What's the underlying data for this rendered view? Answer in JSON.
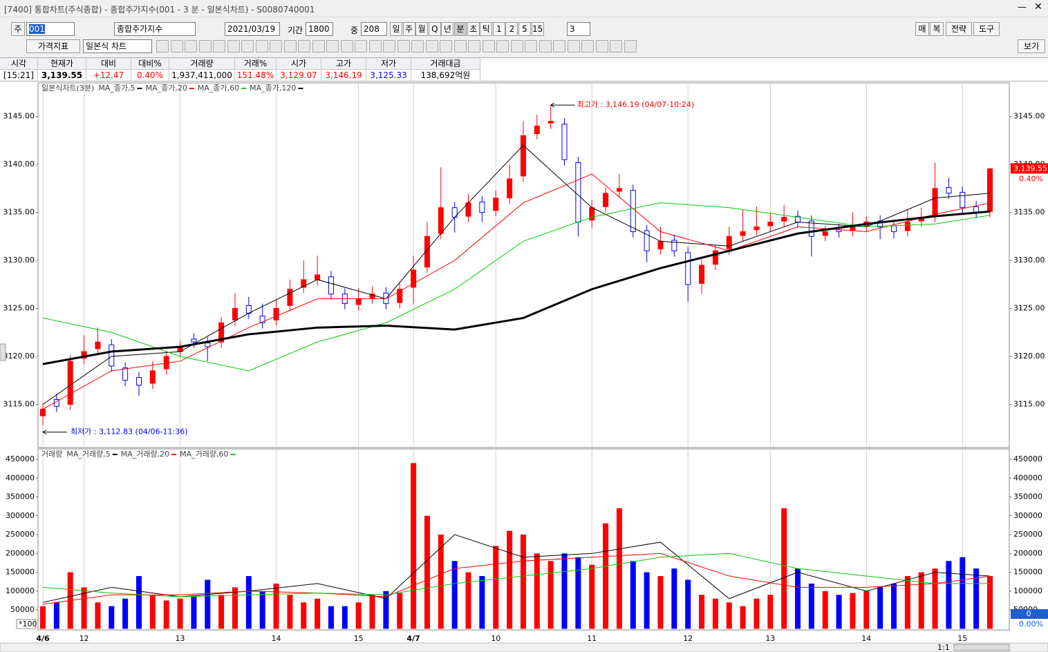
{
  "window": {
    "title": "[7400] 통합차트(주식종합) - 종합주가지수(001 - 3 분 - 일본식차트) - S0080740001"
  },
  "toolbar": {
    "market": "주",
    "code": "001",
    "name": "종합주가지수",
    "date": "2021/03/19",
    "period_label": "기간",
    "period": "1800",
    "count_label": "중",
    "count": "208",
    "periods": [
      "일",
      "주",
      "월",
      "Q",
      "년",
      "분",
      "초",
      "틱",
      "1",
      "2",
      "5",
      "15"
    ],
    "interval": "3",
    "right_buttons": [
      "매",
      "복",
      "전략",
      "도구"
    ],
    "indicator": "가격지표",
    "chart_style": "일본식 차트",
    "view": "보기"
  },
  "quote": {
    "headers": [
      "시각",
      "현재가",
      "대비",
      "대비%",
      "거래량",
      "거래%",
      "시가",
      "고가",
      "저가",
      "거래대금"
    ],
    "values": [
      "[15:21]",
      "3,139.55",
      "+12.47",
      "0.40%",
      "1,937,411,000",
      "151.48%",
      "3,129.07",
      "3,146.19",
      "3,125.33",
      "138,692억원"
    ],
    "value_colors": [
      "#000000",
      "#000000",
      "#ff0000",
      "#ff0000",
      "#000000",
      "#ff0000",
      "#ff0000",
      "#ff0000",
      "#0000ff",
      "#000000"
    ]
  },
  "chart_data": [
    {
      "type": "candlestick",
      "legend_title": "일본식차트(3분)",
      "up_color": "#ff0000",
      "down_color": "#0000ff",
      "grid": "x",
      "categories": [
        "4/6",
        null,
        null,
        "12",
        null,
        null,
        null,
        null,
        null,
        null,
        "13",
        null,
        null,
        null,
        null,
        null,
        null,
        "14",
        null,
        null,
        null,
        null,
        null,
        "15",
        null,
        null,
        null,
        "4/7",
        null,
        null,
        null,
        null,
        null,
        "10",
        null,
        null,
        null,
        null,
        null,
        null,
        "11",
        null,
        null,
        null,
        null,
        null,
        null,
        "12",
        null,
        null,
        null,
        null,
        null,
        "13",
        null,
        null,
        null,
        null,
        null,
        null,
        "14",
        null,
        null,
        null,
        null,
        null,
        null,
        "15",
        null,
        null
      ],
      "open": [
        3113.8,
        3115.5,
        3115.0,
        3119.8,
        3120.8,
        3121.2,
        3118.8,
        3117.8,
        3117.2,
        3118.7,
        3120.5,
        3121.8,
        3121.4,
        3121.5,
        3123.8,
        3125.3,
        3124.2,
        3123.8,
        3125.3,
        3127.2,
        3128.0,
        3128.3,
        3126.5,
        3125.4,
        3126.1,
        3126.6,
        3125.6,
        3127.2,
        3129.3,
        3132.8,
        3135.5,
        3134.6,
        3136.1,
        3135.2,
        3136.5,
        3138.8,
        3143.2,
        3144.3,
        3144.2,
        3140.2,
        3134.2,
        3135.6,
        3137.2,
        3137.3,
        3133.1,
        3131.2,
        3132.1,
        3130.8,
        3127.6,
        3129.6,
        3131.2,
        3132.6,
        3133.2,
        3133.6,
        3134.1,
        3134.6,
        3134.1,
        3132.6,
        3133.2,
        3133.1,
        3133.6,
        3134.1,
        3133.6,
        3133.1,
        3134.1,
        3134.6,
        3137.6,
        3137.1,
        3135.6,
        3135.1
      ],
      "high": [
        3115.1,
        3116.1,
        3120.1,
        3122.2,
        3123.0,
        3121.8,
        3119.4,
        3118.4,
        3119.5,
        3120.6,
        3121.6,
        3122.4,
        3122.0,
        3124.1,
        3126.6,
        3126.2,
        3125.5,
        3125.9,
        3128.0,
        3130.0,
        3130.5,
        3128.9,
        3127.1,
        3127.1,
        3127.3,
        3127.2,
        3127.6,
        3130.5,
        3134.0,
        3139.7,
        3136.1,
        3136.9,
        3136.7,
        3137.3,
        3140.0,
        3144.5,
        3145.2,
        3146.19,
        3144.8,
        3140.8,
        3136.3,
        3137.6,
        3139.0,
        3137.9,
        3133.7,
        3133.5,
        3132.7,
        3131.4,
        3130.1,
        3131.6,
        3133.5,
        3135.3,
        3135.6,
        3135.0,
        3135.8,
        3135.2,
        3134.7,
        3133.6,
        3133.8,
        3135.0,
        3134.6,
        3134.7,
        3134.2,
        3135.3,
        3135.5,
        3140.2,
        3138.6,
        3137.7,
        3136.2,
        3139.6
      ],
      "low": [
        3112.83,
        3114.2,
        3114.4,
        3119.2,
        3120.2,
        3118.4,
        3116.9,
        3115.9,
        3116.6,
        3118.1,
        3119.9,
        3120.9,
        3119.5,
        3120.9,
        3123.2,
        3123.9,
        3122.9,
        3123.2,
        3124.7,
        3126.6,
        3127.4,
        3125.9,
        3124.9,
        3124.8,
        3125.5,
        3124.9,
        3125.0,
        3125.5,
        3128.7,
        3132.2,
        3132.9,
        3134.0,
        3134.0,
        3134.6,
        3135.9,
        3138.2,
        3142.6,
        3143.7,
        3139.9,
        3132.5,
        3133.4,
        3135.0,
        3136.6,
        3132.4,
        3129.8,
        3130.6,
        3130.4,
        3125.7,
        3126.5,
        3129.0,
        3130.6,
        3132.0,
        3132.6,
        3133.0,
        3133.5,
        3133.4,
        3130.4,
        3132.0,
        3132.4,
        3132.5,
        3133.0,
        3132.2,
        3132.3,
        3132.5,
        3133.5,
        3134.0,
        3136.4,
        3134.9,
        3134.4,
        3134.5
      ],
      "close": [
        3114.5,
        3114.8,
        3119.5,
        3120.5,
        3121.5,
        3119.0,
        3117.5,
        3117.0,
        3118.5,
        3120.0,
        3121.0,
        3121.5,
        3121.0,
        3123.5,
        3125.0,
        3124.5,
        3123.5,
        3125.0,
        3127.0,
        3128.0,
        3128.5,
        3126.5,
        3125.5,
        3126.0,
        3126.5,
        3125.5,
        3127.0,
        3129.0,
        3132.5,
        3135.5,
        3134.5,
        3136.0,
        3135.0,
        3136.5,
        3138.5,
        3143.0,
        3144.0,
        3144.5,
        3140.5,
        3134.0,
        3135.5,
        3137.0,
        3137.5,
        3133.0,
        3131.0,
        3132.0,
        3131.0,
        3127.5,
        3129.5,
        3131.0,
        3132.5,
        3133.0,
        3133.5,
        3134.0,
        3134.5,
        3134.0,
        3132.5,
        3133.0,
        3133.0,
        3133.5,
        3134.0,
        3133.5,
        3133.0,
        3134.0,
        3134.5,
        3137.5,
        3137.0,
        3135.5,
        3135.0,
        3139.55
      ],
      "ylim": [
        3110.5,
        3148.5
      ],
      "yticks": [
        {
          "value": 3115,
          "label": "3115.00"
        },
        {
          "value": 3120,
          "label": "3120.00"
        },
        {
          "value": 3125,
          "label": "3125.00"
        },
        {
          "value": 3130,
          "label": "3130.00"
        },
        {
          "value": 3135,
          "label": "3135.00"
        },
        {
          "value": 3140,
          "label": "3140.00"
        },
        {
          "value": 3145,
          "label": "3145.00"
        }
      ],
      "series": [
        {
          "name": "MA_종가,5",
          "color": "#000000",
          "width": 1,
          "x": [
            0,
            5,
            10,
            15,
            20,
            25,
            30,
            35,
            40,
            45,
            50,
            55,
            60,
            65,
            69
          ],
          "values": [
            3115,
            3120,
            3120.5,
            3124.5,
            3128,
            3126,
            3134.5,
            3142,
            3135.5,
            3132,
            3131.5,
            3134,
            3133.5,
            3136.5,
            3137
          ]
        },
        {
          "name": "MA_종가,20",
          "color": "#ff0000",
          "width": 1,
          "x": [
            0,
            5,
            10,
            15,
            20,
            25,
            30,
            35,
            40,
            45,
            50,
            55,
            60,
            65,
            69
          ],
          "values": [
            3114.5,
            3118.5,
            3119.5,
            3123,
            3126,
            3126,
            3130,
            3136,
            3139,
            3133,
            3131,
            3133.5,
            3133,
            3134.8,
            3136
          ]
        },
        {
          "name": "MA_종가,60",
          "color": "#00cc00",
          "width": 1,
          "x": [
            0,
            5,
            10,
            15,
            20,
            25,
            30,
            35,
            40,
            45,
            50,
            55,
            60,
            65,
            69
          ],
          "values": [
            3124,
            3122.5,
            3120,
            3118.5,
            3121.5,
            3123.5,
            3127,
            3132,
            3134.5,
            3136,
            3135.5,
            3134.5,
            3133.5,
            3133.8,
            3134.7
          ]
        },
        {
          "name": "MA_종가,120",
          "color": "#000000",
          "width": 3,
          "x": [
            0,
            5,
            10,
            15,
            20,
            25,
            30,
            35,
            40,
            45,
            50,
            55,
            60,
            65,
            69
          ],
          "values": [
            3119.2,
            3120.5,
            3121,
            3122.3,
            3123,
            3123.2,
            3122.8,
            3124,
            3127,
            3129.2,
            3131,
            3132.8,
            3133.8,
            3134.6,
            3135.1
          ]
        }
      ],
      "annotations": {
        "high": {
          "text": "최고가 : 3,146.19 (04/07-10:24)",
          "color": "#ff0000"
        },
        "low": {
          "text": "최저가 : 3,112.83 (04/06-11:36)",
          "color": "#0000ff"
        }
      },
      "current": {
        "label": "3,139.55",
        "change": "0.40%",
        "color": "#ff0000"
      }
    },
    {
      "type": "bar",
      "legend_title": "거래량",
      "scale_note": "*100",
      "right_value": "0",
      "right_change": "0.00%",
      "values": [
        60000,
        70000,
        150000,
        110000,
        70000,
        60000,
        80000,
        140000,
        90000,
        75000,
        80000,
        85000,
        130000,
        90000,
        110000,
        140000,
        100000,
        120000,
        90000,
        70000,
        80000,
        60000,
        60000,
        70000,
        90000,
        100000,
        95000,
        440000,
        300000,
        250000,
        180000,
        150000,
        140000,
        220000,
        260000,
        250000,
        200000,
        180000,
        200000,
        190000,
        170000,
        280000,
        320000,
        180000,
        150000,
        140000,
        160000,
        130000,
        90000,
        80000,
        70000,
        60000,
        80000,
        90000,
        320000,
        160000,
        120000,
        100000,
        90000,
        95000,
        100000,
        110000,
        120000,
        140000,
        150000,
        160000,
        180000,
        190000,
        160000,
        140000
      ],
      "ylim": [
        -3000,
        477500
      ],
      "yticks": [
        50000,
        100000,
        150000,
        200000,
        250000,
        300000,
        350000,
        400000,
        450000
      ],
      "series": [
        {
          "name": "MA_거래량,5",
          "color": "#000000",
          "x": [
            0,
            5,
            10,
            15,
            20,
            25,
            30,
            35,
            40,
            45,
            50,
            55,
            60,
            65,
            69
          ],
          "values": [
            70000,
            110000,
            85000,
            100000,
            120000,
            80000,
            250000,
            190000,
            200000,
            230000,
            80000,
            150000,
            100000,
            150000,
            140000
          ]
        },
        {
          "name": "MA_거래량,20",
          "color": "#ff0000",
          "x": [
            0,
            5,
            10,
            15,
            20,
            25,
            30,
            35,
            40,
            45,
            50,
            55,
            60,
            65,
            69
          ],
          "values": [
            65000,
            90000,
            90000,
            100000,
            95000,
            85000,
            160000,
            180000,
            190000,
            200000,
            140000,
            110000,
            110000,
            120000,
            140000
          ]
        },
        {
          "name": "MA_거래량,60",
          "color": "#00cc00",
          "x": [
            0,
            5,
            10,
            15,
            20,
            25,
            30,
            35,
            40,
            45,
            50,
            55,
            60,
            65,
            69
          ],
          "values": [
            110000,
            95000,
            85000,
            90000,
            95000,
            90000,
            120000,
            140000,
            160000,
            190000,
            200000,
            160000,
            140000,
            120000,
            120000
          ]
        }
      ]
    }
  ],
  "footer": {
    "scale": "1:1"
  }
}
